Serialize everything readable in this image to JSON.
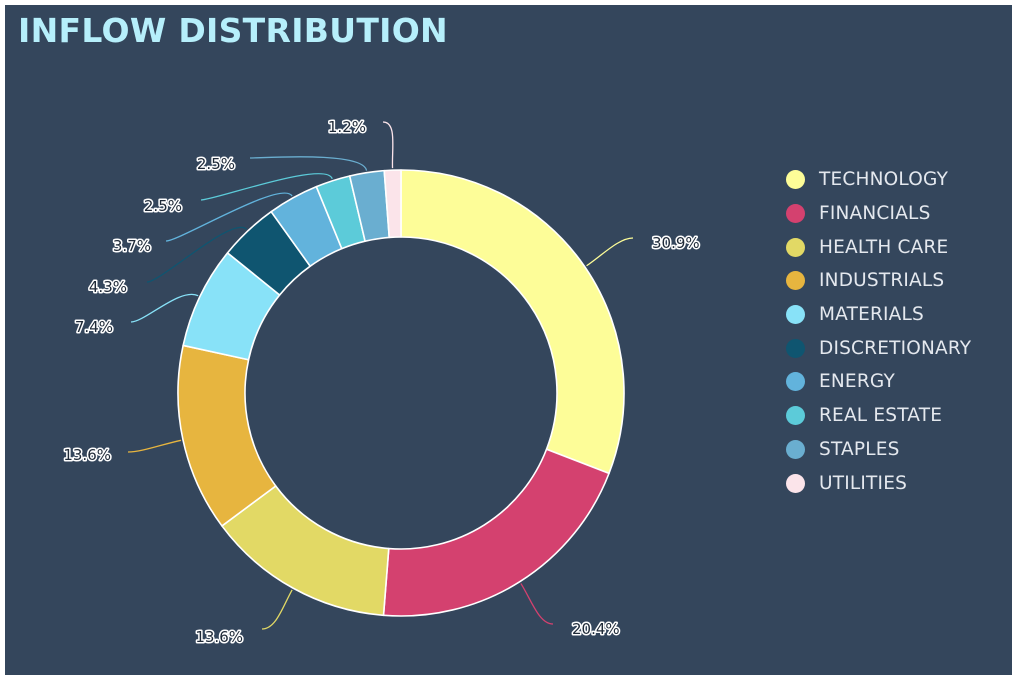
{
  "chart_data": {
    "type": "pie",
    "title": "INFLOW DISTRIBUTION",
    "donut": true,
    "legend_position": "right",
    "series": [
      {
        "name": "TECHNOLOGY",
        "label": "30.9%",
        "value": 30.9,
        "color": "#fdfd98"
      },
      {
        "name": "FINANCIALS",
        "label": "20.4%",
        "value": 20.4,
        "color": "#d4416f"
      },
      {
        "name": "HEALTH CARE",
        "label": "13.6%",
        "value": 13.6,
        "color": "#e2d965"
      },
      {
        "name": "INDUSTRIALS",
        "label": "13.6%",
        "value": 13.6,
        "color": "#e7b53f"
      },
      {
        "name": "MATERIALS",
        "label": "7.4%",
        "value": 7.4,
        "color": "#88e2f8"
      },
      {
        "name": "DISCRETIONARY",
        "label": "4.3%",
        "value": 4.3,
        "color": "#0f5570"
      },
      {
        "name": "ENERGY",
        "label": "3.7%",
        "value": 3.7,
        "color": "#62b3dc"
      },
      {
        "name": "REAL ESTATE",
        "label": "2.5%",
        "value": 2.5,
        "color": "#5ccbd9"
      },
      {
        "name": "STAPLES",
        "label": "2.5%",
        "value": 2.5,
        "color": "#6aaed0"
      },
      {
        "name": "UTILITIES",
        "label": "1.2%",
        "value": 1.2,
        "color": "#fbe4ea"
      }
    ]
  }
}
